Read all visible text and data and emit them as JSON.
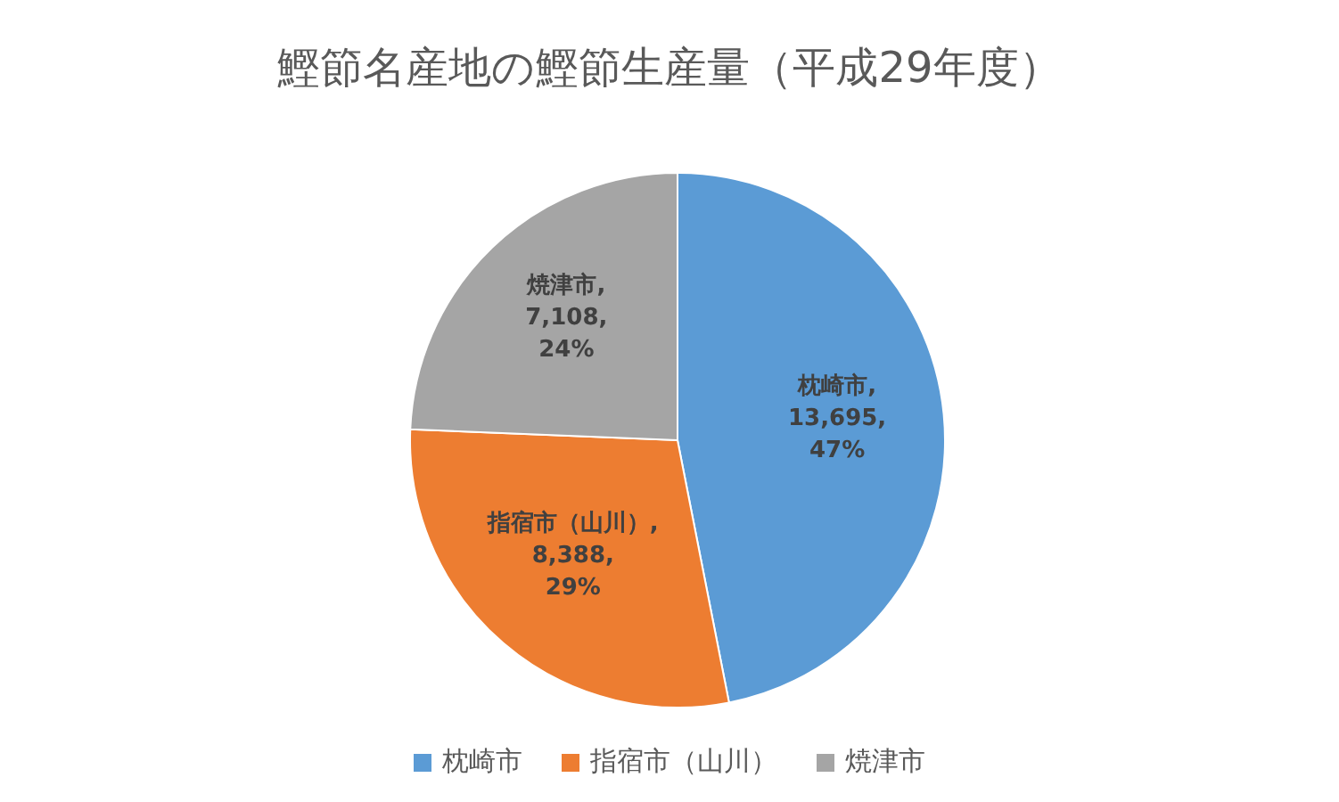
{
  "chart_data": {
    "type": "pie",
    "title": "鰹節名産地の鰹節生産量（平成29年度）",
    "categories": [
      "枕崎市",
      "指宿市（山川）",
      "焼津市"
    ],
    "values": [
      13695,
      8388,
      7108
    ],
    "colors": [
      "#5b9bd5",
      "#ed7d31",
      "#a5a5a5"
    ],
    "value_labels": [
      "枕崎市, 13,695, 47%",
      "指宿市（山川）, 8,388, 29%",
      "焼津市, 7,108, 24%"
    ],
    "legend": "bottom"
  }
}
